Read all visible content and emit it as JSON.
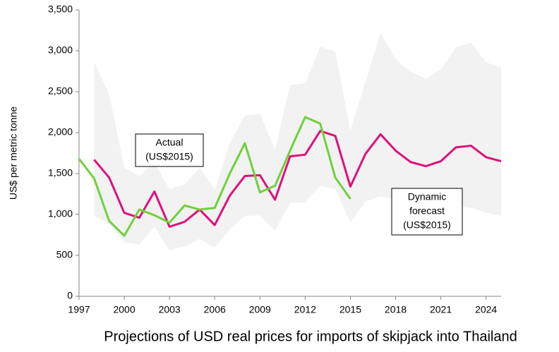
{
  "chart_data": {
    "type": "line",
    "title": "Projections of USD real prices for imports of skipjack into Thailand",
    "y_label": "US$ per metric tonne",
    "xlim": [
      1997,
      2025
    ],
    "xticks": [
      1997,
      2000,
      2003,
      2006,
      2009,
      2012,
      2015,
      2018,
      2021,
      2024
    ],
    "ylim": [
      0,
      3500
    ],
    "yticks": [
      0,
      500,
      {
        "value": 1000,
        "label": "1,000"
      },
      {
        "value": 1500,
        "label": "1,500"
      },
      {
        "value": 2000,
        "label": "2,000"
      },
      {
        "value": 2500,
        "label": "2,500"
      },
      {
        "value": 3000,
        "label": "3,000"
      },
      {
        "value": 3500,
        "label": "3,500"
      }
    ],
    "band": {
      "color": "#f2f2f2",
      "x": [
        1998,
        1999,
        2000,
        2001,
        2002,
        2003,
        2004,
        2005,
        2006,
        2007,
        2008,
        2009,
        2010,
        2011,
        2012,
        2013,
        2014,
        2015,
        2016,
        2017,
        2018,
        2019,
        2020,
        2021,
        2022,
        2023,
        2024,
        2025
      ],
      "upper": [
        2860,
        2470,
        1570,
        1470,
        1640,
        1310,
        1370,
        1570,
        1300,
        1870,
        2210,
        2230,
        1790,
        2580,
        2600,
        3050,
        2990,
        2020,
        2620,
        3220,
        2900,
        2740,
        2660,
        2770,
        3040,
        3100,
        2860,
        2800
      ],
      "lower": [
        980,
        880,
        660,
        630,
        850,
        560,
        610,
        700,
        590,
        820,
        980,
        990,
        800,
        1140,
        1150,
        1350,
        1310,
        900,
        1160,
        1220,
        1180,
        1110,
        1090,
        1110,
        1100,
        1080,
        1020,
        980
      ]
    },
    "series": [
      {
        "color": "#e0107a",
        "x": [
          1998,
          1999,
          2000,
          2001,
          2002,
          2003,
          2004,
          2005,
          2006,
          2007,
          2008,
          2009,
          2010,
          2011,
          2012,
          2013,
          2014,
          2015,
          2016,
          2017,
          2018,
          2019,
          2020,
          2021,
          2022,
          2023,
          2024,
          2025
        ],
        "values": [
          1670,
          1450,
          1020,
          960,
          1280,
          850,
          910,
          1060,
          870,
          1230,
          1470,
          1480,
          1180,
          1710,
          1730,
          2020,
          1960,
          1340,
          1740,
          1980,
          1780,
          1640,
          1590,
          1650,
          1820,
          1840,
          1700,
          1650
        ]
      },
      {
        "color": "#6fd13a",
        "x": [
          1997,
          1998,
          1999,
          2000,
          2001,
          2002,
          2003,
          2004,
          2005,
          2006,
          2007,
          2008,
          2009,
          2010,
          2011,
          2012,
          2013,
          2014,
          2015
        ],
        "values": [
          1680,
          1440,
          920,
          740,
          1060,
          990,
          900,
          1110,
          1060,
          1080,
          1500,
          1870,
          1270,
          1350,
          1780,
          2190,
          2110,
          1450,
          1190
        ]
      }
    ],
    "annotations": [
      {
        "lines": [
          "Actual",
          "(US$2015)"
        ]
      },
      {
        "lines": [
          "Dynamic",
          "forecast",
          "(US$2015)"
        ]
      }
    ]
  }
}
